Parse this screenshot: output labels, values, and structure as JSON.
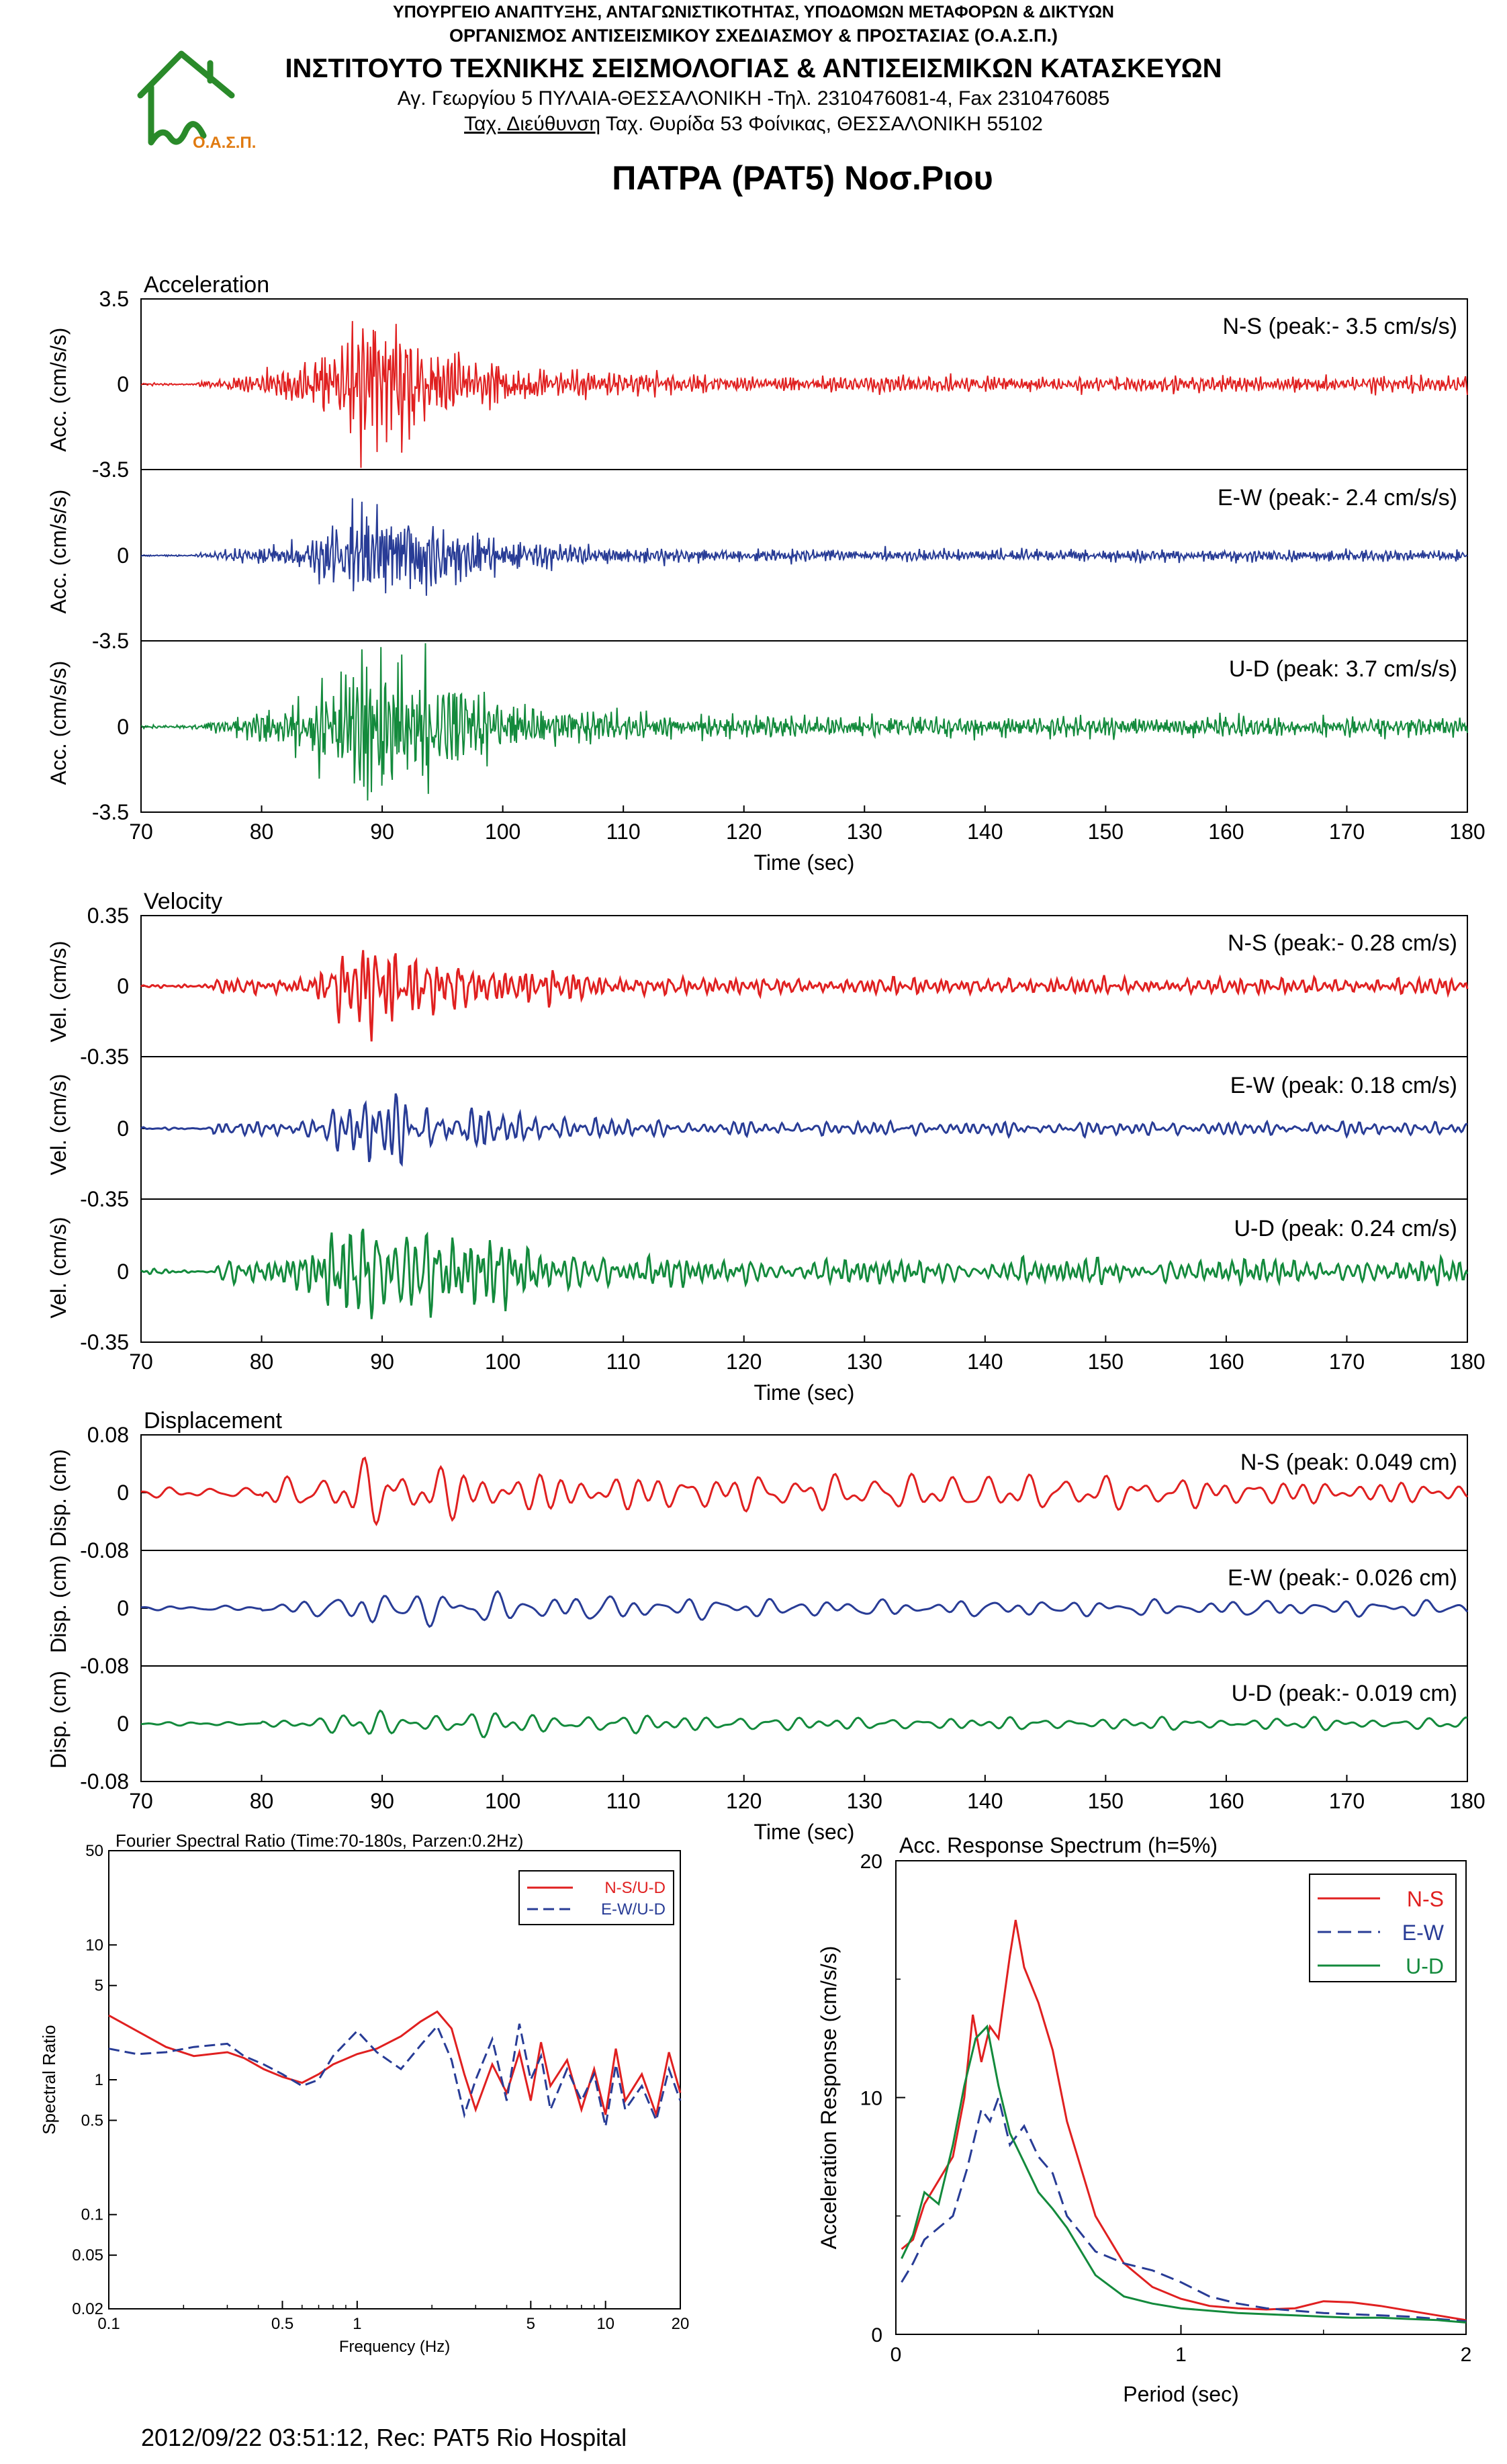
{
  "header": {
    "line1": "ΥΠΟΥΡΓΕΙΟ ΑΝΑΠΤΥΞΗΣ, ΑΝΤΑΓΩΝΙΣΤΙΚΟΤΗΤΑΣ, ΥΠΟΔΟΜΩΝ ΜΕΤΑΦΟΡΩΝ & ΔΙΚΤΥΩΝ",
    "line2": "ΟΡΓΑΝΙΣΜΟΣ ΑΝΤΙΣΕΙΣΜΙΚΟΥ ΣΧΕΔΙΑΣΜΟΥ & ΠΡΟΣΤΑΣΙΑΣ (Ο.Α.Σ.Π.)",
    "line3": "ΙΝΣΤΙΤΟΥΤΟ ΤΕΧΝΙΚΗΣ ΣΕΙΣΜΟΛΟΓΙΑΣ & ΑΝΤΙΣΕΙΣΜΙΚΩΝ ΚΑΤΑΣΚΕΥΩΝ",
    "line4": "Αγ. Γεωργίου 5 ΠΥΛΑΙΑ-ΘΕΣΣΑΛΟΝΙΚΗ -Τηλ. 2310476081-4,  Fax 2310476085",
    "line5_underlined": "Ταχ. Διεύθυνση",
    "line5_rest": " Ταχ. Θυρίδα 53 Φοίνικας, ΘΕΣΣΑΛΟΝΙΚΗ 55102",
    "logo_text": "Ο.Α.Σ.Π."
  },
  "title": "ΠΑΤΡΑ (PAT5) Νοσ.Ριου",
  "footer": "2012/09/22 03:51:12, Rec: PAT5 Rio Hospital",
  "colors": {
    "ns": "#e02020",
    "ew": "#283c96",
    "ud": "#138a3c",
    "logo": "#2a8a2a",
    "logo_text": "#e07a10"
  },
  "chart_data": [
    {
      "type": "line",
      "title": "Acceleration",
      "xlabel": "Time (sec)",
      "xlim": [
        70,
        180
      ],
      "xticks": [
        "70",
        "80",
        "90",
        "100",
        "110",
        "120",
        "130",
        "140",
        "150",
        "160",
        "170",
        "180"
      ],
      "panels": [
        {
          "ylabel": "Acc. (cm/s/s)",
          "yticks": [
            "3.5",
            "0",
            "-3.5"
          ],
          "ylim": [
            -3.5,
            3.5
          ],
          "label": "N-S (peak:- 3.5 cm/s/s)",
          "series": "ns",
          "peak": 3.5
        },
        {
          "ylabel": "Acc. (cm/s/s)",
          "yticks": [
            "0",
            "-3.5"
          ],
          "ylim": [
            -3.5,
            3.5
          ],
          "label": "E-W (peak:- 2.4 cm/s/s)",
          "series": "ew",
          "peak": 2.4
        },
        {
          "ylabel": "Acc. (cm/s/s)",
          "yticks": [
            "0",
            "-3.5"
          ],
          "ylim": [
            -3.5,
            3.5
          ],
          "label": "U-D (peak: 3.7 cm/s/s)",
          "series": "ud",
          "peak": 3.7
        }
      ]
    },
    {
      "type": "line",
      "title": "Velocity",
      "xlabel": "Time (sec)",
      "xlim": [
        70,
        180
      ],
      "xticks": [
        "70",
        "80",
        "90",
        "100",
        "110",
        "120",
        "130",
        "140",
        "150",
        "160",
        "170",
        "180"
      ],
      "panels": [
        {
          "ylabel": "Vel. (cm/s)",
          "yticks": [
            "0.35",
            "0",
            "-0.35"
          ],
          "ylim": [
            -0.35,
            0.35
          ],
          "label": "N-S (peak:- 0.28 cm/s)",
          "series": "ns",
          "peak": 0.28
        },
        {
          "ylabel": "Vel. (cm/s)",
          "yticks": [
            "0",
            "-0.35"
          ],
          "ylim": [
            -0.35,
            0.35
          ],
          "label": "E-W (peak: 0.18 cm/s)",
          "series": "ew",
          "peak": 0.18
        },
        {
          "ylabel": "Vel. (cm/s)",
          "yticks": [
            "0",
            "-0.35"
          ],
          "ylim": [
            -0.35,
            0.35
          ],
          "label": "U-D (peak: 0.24 cm/s)",
          "series": "ud",
          "peak": 0.24
        }
      ]
    },
    {
      "type": "line",
      "title": "Displacement",
      "xlabel": "Time (sec)",
      "xlim": [
        70,
        180
      ],
      "xticks": [
        "70",
        "80",
        "90",
        "100",
        "110",
        "120",
        "130",
        "140",
        "150",
        "160",
        "170",
        "180"
      ],
      "panels": [
        {
          "ylabel": "Disp. (cm)",
          "yticks": [
            "0.08",
            "0",
            "-0.08"
          ],
          "ylim": [
            -0.08,
            0.08
          ],
          "label": "N-S (peak: 0.049 cm)",
          "series": "ns",
          "peak": 0.049
        },
        {
          "ylabel": "Disp. (cm)",
          "yticks": [
            "0",
            "-0.08"
          ],
          "ylim": [
            -0.08,
            0.08
          ],
          "label": "E-W (peak:- 0.026 cm)",
          "series": "ew",
          "peak": 0.026
        },
        {
          "ylabel": "Disp. (cm)",
          "yticks": [
            "0",
            "-0.08"
          ],
          "ylim": [
            -0.08,
            0.08
          ],
          "label": "U-D (peak:- 0.019 cm)",
          "series": "ud",
          "peak": 0.019
        }
      ]
    },
    {
      "type": "line",
      "title": "Fourier Spectral Ratio (Time:70-180s, Parzen:0.2Hz)",
      "xlabel": "Frequency (Hz)",
      "ylabel": "Spectral Ratio",
      "xscale": "log",
      "yscale": "log",
      "xlim": [
        0.1,
        20
      ],
      "ylim": [
        0.02,
        50
      ],
      "xticks": [
        {
          "v": 0.1,
          "t": "0.1"
        },
        {
          "v": 0.5,
          "t": "0.5"
        },
        {
          "v": 1,
          "t": "1"
        },
        {
          "v": 5,
          "t": "5"
        },
        {
          "v": 10,
          "t": "10"
        },
        {
          "v": 20,
          "t": "20"
        }
      ],
      "yticks": [
        {
          "v": 0.02,
          "t": "0.02"
        },
        {
          "v": 0.05,
          "t": "0.05"
        },
        {
          "v": 0.1,
          "t": "0.1"
        },
        {
          "v": 0.5,
          "t": "0.5"
        },
        {
          "v": 1,
          "t": "1"
        },
        {
          "v": 5,
          "t": "5"
        },
        {
          "v": 10,
          "t": "10"
        },
        {
          "v": 50,
          "t": "50"
        }
      ],
      "legend_position": "top-right",
      "series": [
        {
          "name": "N-S/U-D",
          "color": "ns",
          "dash": false,
          "x": [
            0.1,
            0.13,
            0.17,
            0.22,
            0.3,
            0.35,
            0.42,
            0.5,
            0.6,
            0.7,
            0.8,
            1.0,
            1.2,
            1.5,
            1.8,
            2.1,
            2.4,
            2.7,
            3.0,
            3.5,
            4.0,
            4.5,
            5.0,
            5.5,
            6.0,
            7.0,
            8.0,
            9.0,
            10,
            11,
            12,
            14,
            16,
            18,
            20
          ],
          "y": [
            3.0,
            2.3,
            1.75,
            1.5,
            1.6,
            1.45,
            1.2,
            1.05,
            0.95,
            1.1,
            1.3,
            1.55,
            1.7,
            2.1,
            2.7,
            3.2,
            2.4,
            1.1,
            0.6,
            1.3,
            0.8,
            1.6,
            0.7,
            1.9,
            0.9,
            1.4,
            0.6,
            1.2,
            0.55,
            1.7,
            0.7,
            1.1,
            0.55,
            1.6,
            0.8
          ]
        },
        {
          "name": "E-W/U-D",
          "color": "ew",
          "dash": true,
          "x": [
            0.1,
            0.13,
            0.17,
            0.22,
            0.3,
            0.35,
            0.42,
            0.5,
            0.6,
            0.7,
            0.8,
            1.0,
            1.2,
            1.5,
            1.8,
            2.1,
            2.4,
            2.7,
            3.0,
            3.5,
            4.0,
            4.5,
            5.0,
            5.5,
            6.0,
            7.0,
            8.0,
            9.0,
            10,
            11,
            12,
            14,
            16,
            18,
            20
          ],
          "y": [
            1.7,
            1.55,
            1.6,
            1.75,
            1.85,
            1.5,
            1.3,
            1.1,
            0.9,
            1.0,
            1.5,
            2.3,
            1.6,
            1.2,
            1.8,
            2.5,
            1.4,
            0.55,
            1.0,
            2.0,
            0.7,
            2.6,
            1.0,
            1.5,
            0.6,
            1.2,
            0.7,
            1.1,
            0.45,
            1.3,
            0.6,
            0.9,
            0.5,
            1.2,
            0.7
          ]
        }
      ]
    },
    {
      "type": "line",
      "title": "Acc. Response Spectrum (h=5%)",
      "xlabel": "Period (sec)",
      "ylabel": "Acceleration Response (cm/s/s)",
      "xlim": [
        0,
        2
      ],
      "ylim": [
        0,
        20
      ],
      "xticks": [
        "0",
        "1",
        "2"
      ],
      "yticks": [
        "0",
        "10",
        "20"
      ],
      "legend_position": "top-right",
      "series": [
        {
          "name": "N-S",
          "color": "ns",
          "dash": false,
          "x": [
            0.02,
            0.06,
            0.1,
            0.15,
            0.2,
            0.24,
            0.27,
            0.3,
            0.33,
            0.36,
            0.4,
            0.42,
            0.45,
            0.5,
            0.55,
            0.6,
            0.7,
            0.8,
            0.9,
            1.0,
            1.1,
            1.2,
            1.3,
            1.4,
            1.5,
            1.6,
            1.7,
            1.8,
            1.9,
            2.0
          ],
          "y": [
            3.6,
            4.0,
            5.5,
            6.5,
            7.5,
            10.0,
            13.5,
            11.5,
            13.0,
            12.5,
            16.0,
            17.5,
            15.5,
            14.0,
            12.0,
            9.0,
            5.0,
            3.0,
            2.0,
            1.5,
            1.2,
            1.1,
            1.05,
            1.1,
            1.4,
            1.35,
            1.2,
            1.0,
            0.8,
            0.6
          ]
        },
        {
          "name": "E-W",
          "color": "ew",
          "dash": true,
          "x": [
            0.02,
            0.06,
            0.1,
            0.15,
            0.2,
            0.25,
            0.3,
            0.33,
            0.36,
            0.4,
            0.45,
            0.5,
            0.55,
            0.6,
            0.7,
            0.8,
            0.9,
            1.0,
            1.1,
            1.2,
            1.3,
            1.4,
            1.5,
            1.6,
            1.7,
            1.8,
            1.9,
            2.0
          ],
          "y": [
            2.2,
            3.0,
            4.0,
            4.5,
            5.0,
            7.0,
            9.5,
            9.0,
            10.0,
            8.0,
            8.8,
            7.5,
            6.8,
            5.0,
            3.5,
            3.0,
            2.7,
            2.2,
            1.6,
            1.3,
            1.1,
            1.0,
            0.9,
            0.85,
            0.8,
            0.75,
            0.65,
            0.55
          ]
        },
        {
          "name": "U-D",
          "color": "ud",
          "dash": false,
          "x": [
            0.02,
            0.06,
            0.1,
            0.15,
            0.2,
            0.24,
            0.28,
            0.32,
            0.36,
            0.4,
            0.44,
            0.5,
            0.55,
            0.6,
            0.7,
            0.8,
            0.9,
            1.0,
            1.1,
            1.2,
            1.3,
            1.4,
            1.5,
            1.6,
            1.7,
            1.8,
            1.9,
            2.0
          ],
          "y": [
            3.2,
            4.2,
            6.0,
            5.5,
            8.0,
            10.5,
            12.5,
            13.0,
            10.5,
            8.5,
            7.5,
            6.0,
            5.3,
            4.5,
            2.5,
            1.6,
            1.3,
            1.1,
            1.0,
            0.9,
            0.85,
            0.8,
            0.75,
            0.7,
            0.7,
            0.65,
            0.6,
            0.5
          ]
        }
      ]
    }
  ]
}
